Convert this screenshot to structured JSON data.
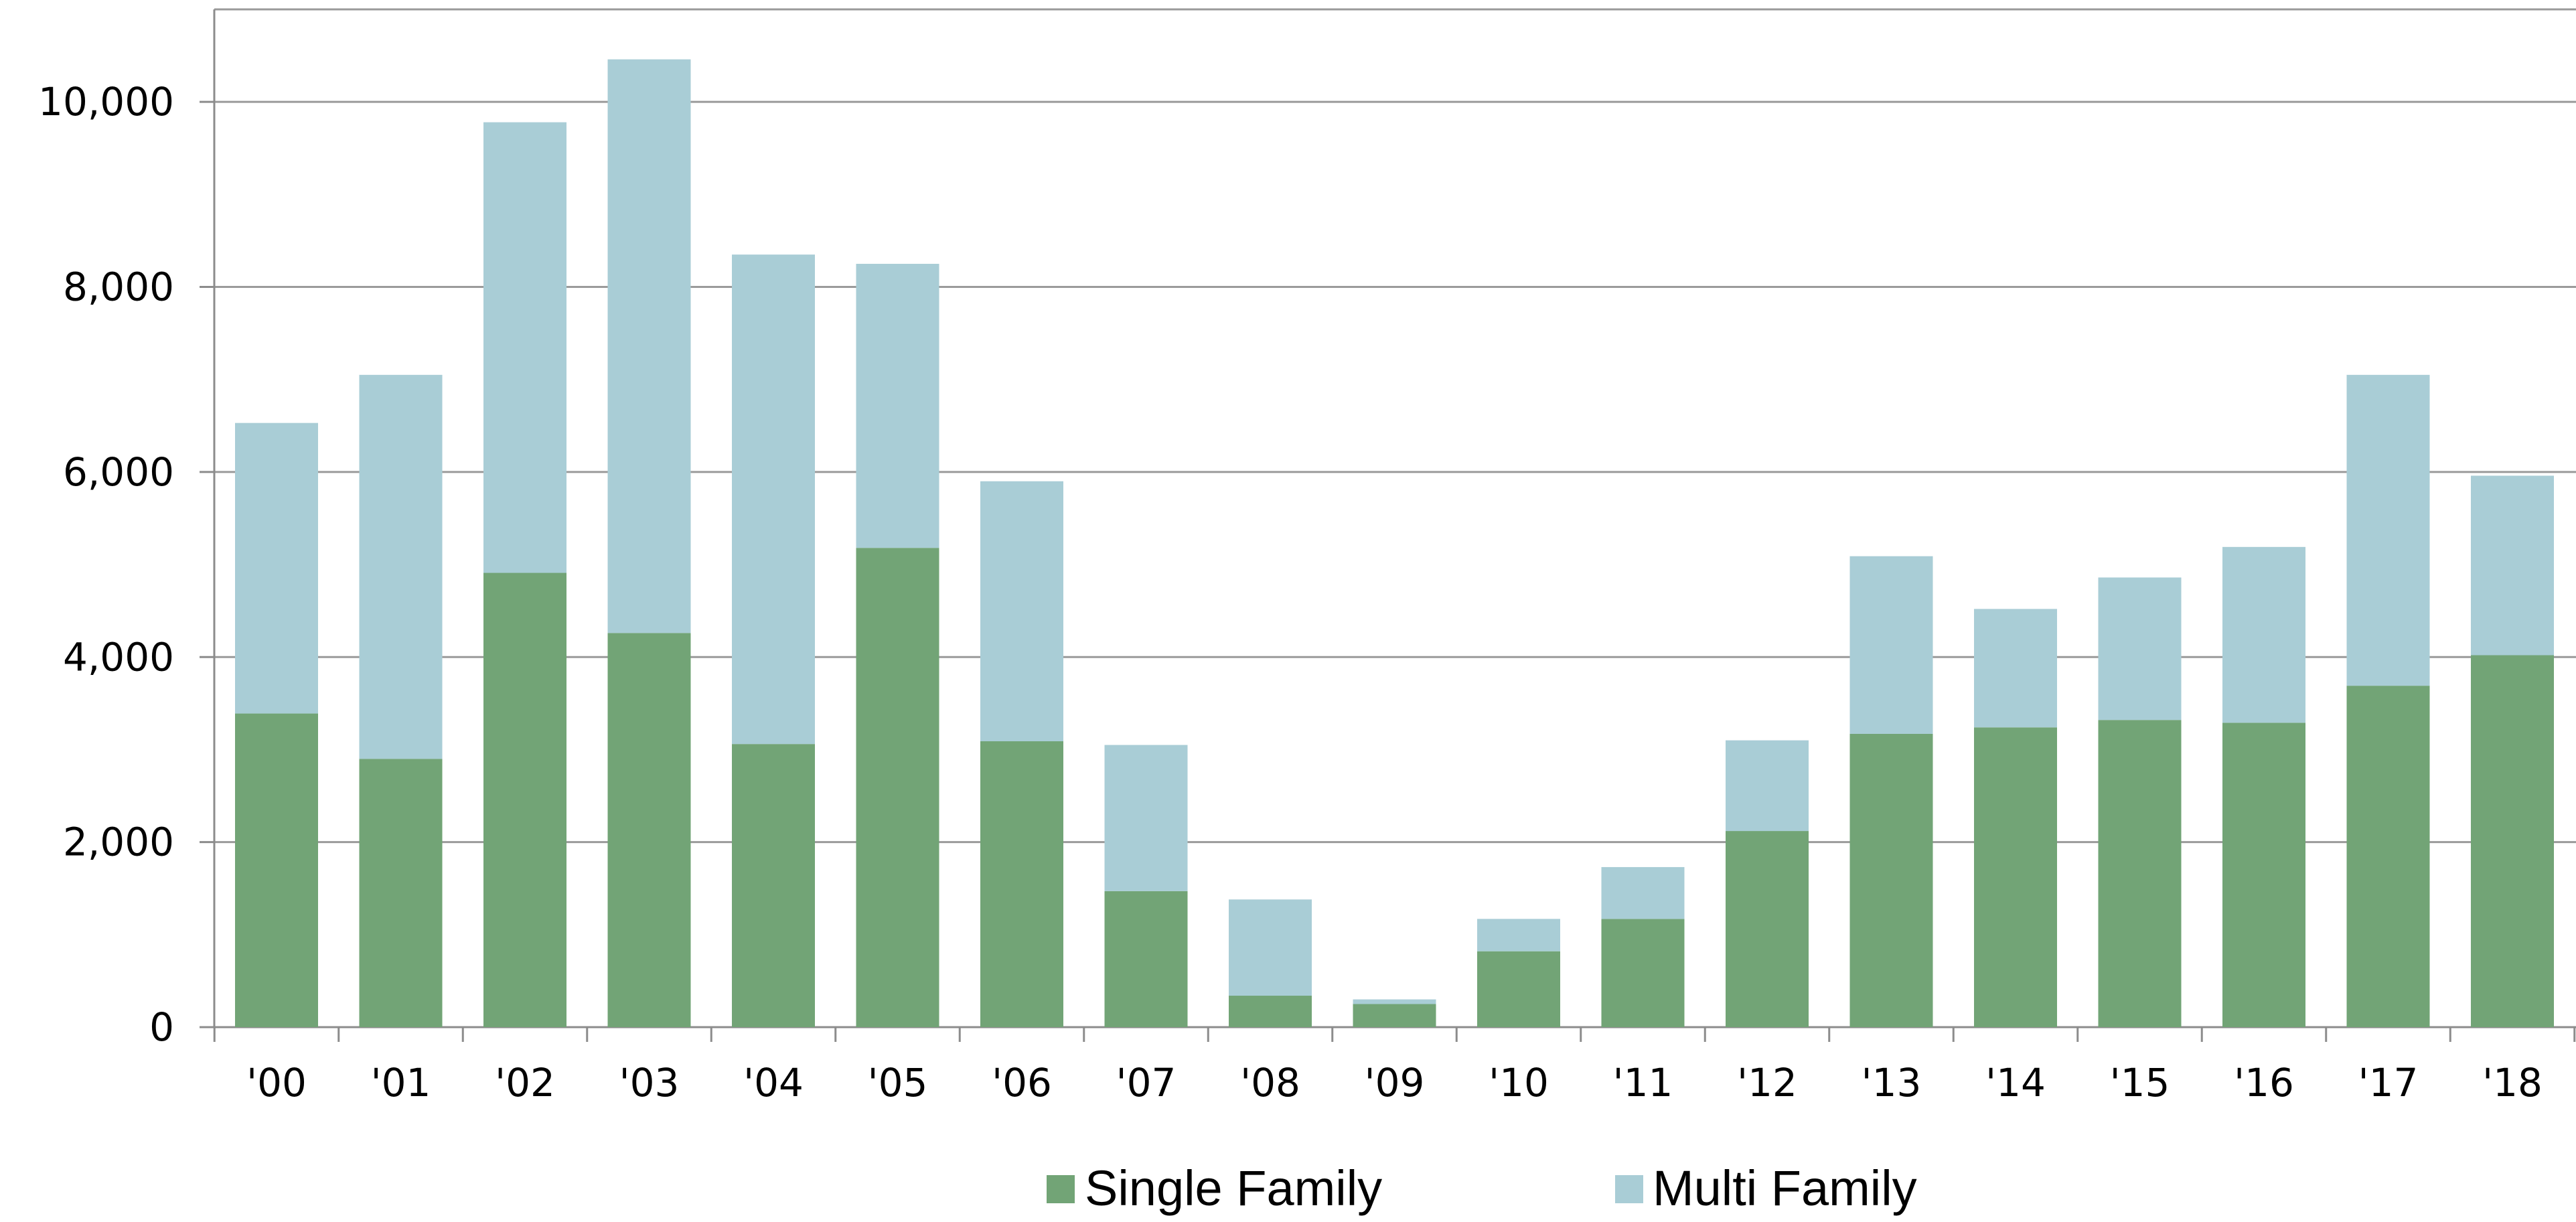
{
  "chart_data": {
    "type": "bar",
    "stacked": true,
    "categories": [
      "'00",
      "'01",
      "'02",
      "'03",
      "'04",
      "'05",
      "'06",
      "'07",
      "'08",
      "'09",
      "'10",
      "'11",
      "'12",
      "'13",
      "'14",
      "'15",
      "'16",
      "'17",
      "'18"
    ],
    "series": [
      {
        "name": "Single Family",
        "color": "#72a476",
        "values": [
          3390,
          2900,
          4910,
          4260,
          3060,
          5180,
          3090,
          1470,
          340,
          250,
          820,
          1170,
          2120,
          3170,
          3240,
          3320,
          3290,
          3690,
          4020
        ]
      },
      {
        "name": "Multi Family",
        "color": "#a9cdd6",
        "values": [
          3140,
          4150,
          4870,
          6200,
          5290,
          3070,
          2810,
          1580,
          1040,
          50,
          350,
          560,
          980,
          1920,
          1280,
          1540,
          1900,
          3360,
          1940
        ]
      }
    ],
    "yticks": [
      "0",
      "2,000",
      "4,000",
      "6,000",
      "8,000",
      "10,000"
    ],
    "ylim": [
      0,
      11000
    ],
    "grid": true,
    "legend": "bottom",
    "title": "",
    "xlabel": "",
    "ylabel": ""
  }
}
